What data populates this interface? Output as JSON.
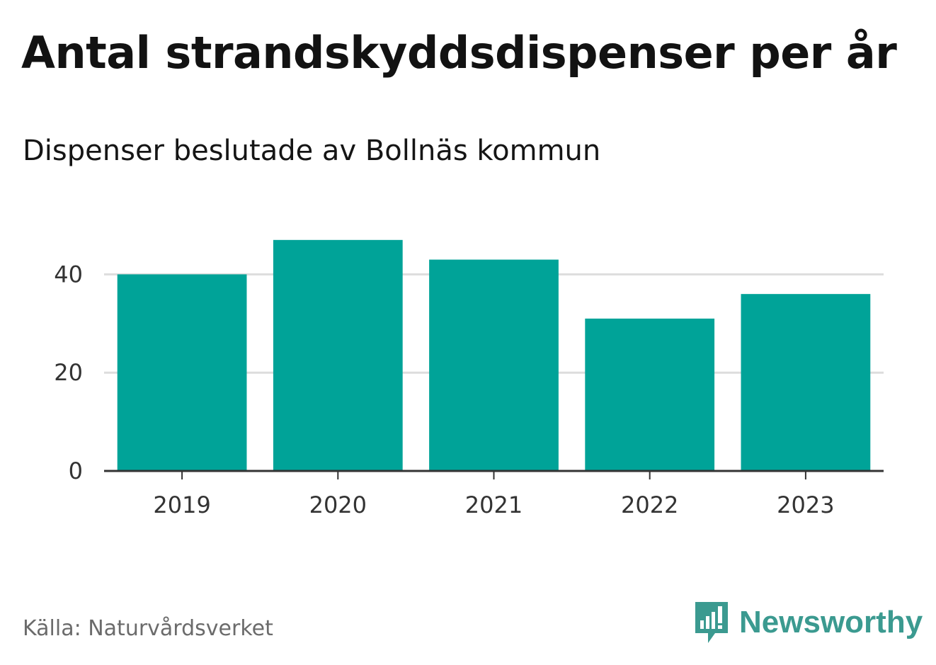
{
  "title": "Antal strandskyddsdispenser per år",
  "subtitle": "Dispenser beslutade av Bollnäs kommun",
  "source": "Källa: Naturvårdsverket",
  "brand": {
    "name": "Newsworthy",
    "icon": "newsworthy-logo-icon",
    "color": "#3b9a90"
  },
  "colors": {
    "bar": "#00a398",
    "grid": "#dddddd",
    "axis": "#333333"
  },
  "chart_data": {
    "type": "bar",
    "categories": [
      "2019",
      "2020",
      "2021",
      "2022",
      "2023"
    ],
    "values": [
      40,
      47,
      43,
      31,
      36
    ],
    "ylim": [
      0,
      50
    ],
    "yticks": [
      0,
      20,
      40
    ],
    "grid": true,
    "legend": "none"
  }
}
